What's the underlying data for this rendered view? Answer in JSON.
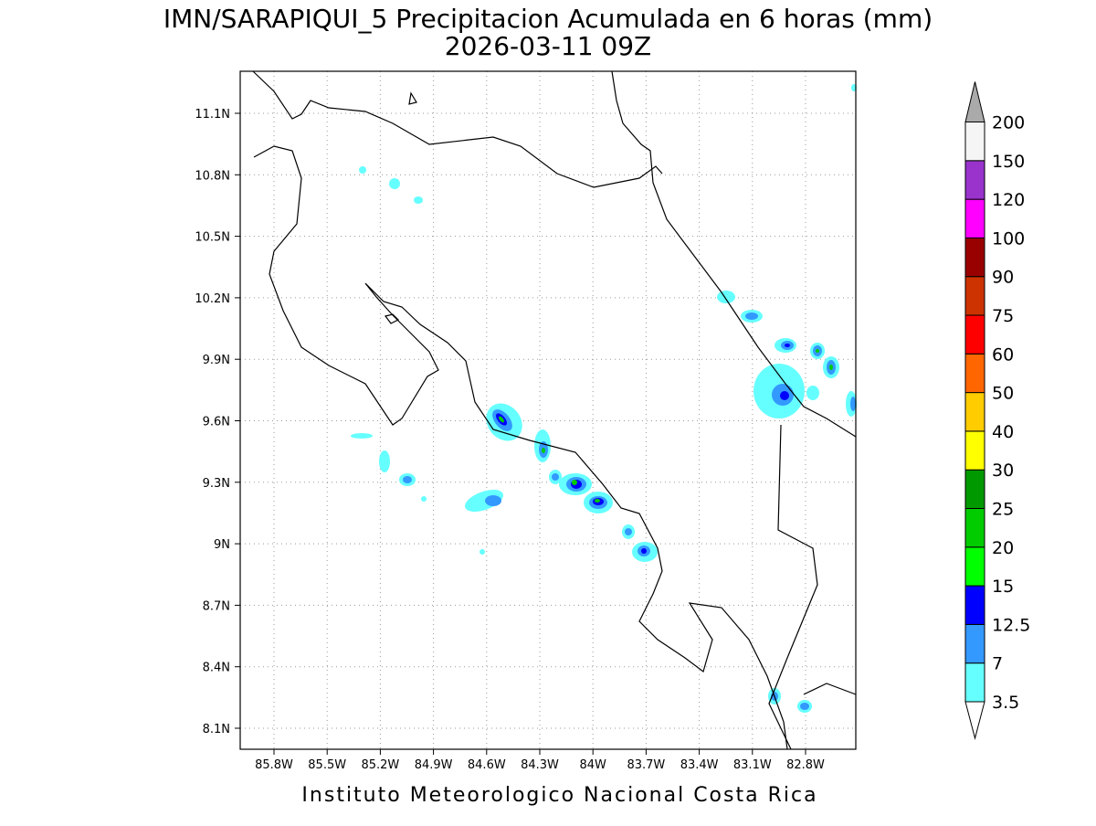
{
  "map": {
    "title": "IMN/SARAPIQUI_5 Precipitacion Acumulada en 6 horas (mm)",
    "subtitle": "2026-03-11 09Z",
    "lon_ticks": [
      "85.8W",
      "85.5W",
      "85.2W",
      "84.9W",
      "84.6W",
      "84.3W",
      "84W",
      "83.7W",
      "83.4W",
      "83.1W",
      "82.8W"
    ],
    "lat_ticks": [
      "8.1N",
      "8.4N",
      "8.7N",
      "9N",
      "9.3N",
      "9.6N",
      "9.9N",
      "10.2N",
      "10.5N",
      "10.8N",
      "11.1N"
    ],
    "footer": "Instituto Meteorologico Nacional Costa Rica"
  },
  "colorbar": {
    "levels": [
      3.5,
      7,
      12.5,
      15,
      20,
      25,
      30,
      40,
      50,
      60,
      75,
      90,
      100,
      120,
      150,
      200
    ],
    "colors": [
      "#66ffff",
      "#3399ff",
      "#0000ff",
      "#00ff00",
      "#00cc00",
      "#009900",
      "#ffff00",
      "#ffcc00",
      "#ff6600",
      "#ff0000",
      "#cc3300",
      "#990000",
      "#ff00ff",
      "#9933cc",
      "#f5f5f5"
    ],
    "under_color": "#ffffff",
    "over_color": "#aaaaaa"
  }
}
